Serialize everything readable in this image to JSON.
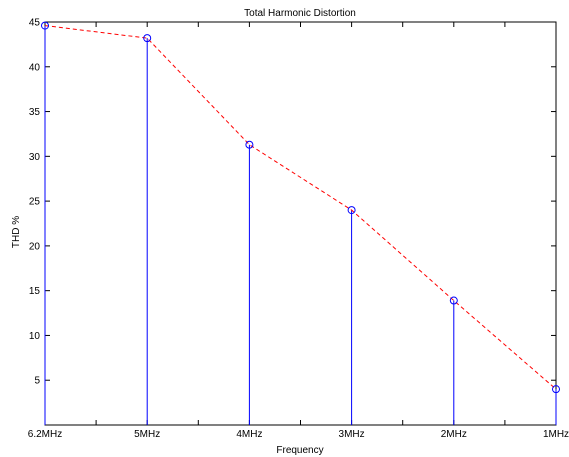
{
  "chart_data": {
    "type": "stem",
    "title": "Total Harmonic Distortion",
    "xlabel": "Frequency",
    "ylabel": "THD %",
    "x_tick_labels": [
      "6.2MHz",
      "",
      "5MHz",
      "",
      "4MHz",
      "",
      "3MHz",
      "",
      "2MHz",
      "",
      "1MHz"
    ],
    "categories": [
      "6.2MHz",
      "5MHz",
      "4MHz",
      "3MHz",
      "2MHz",
      "1MHz"
    ],
    "x": [
      0,
      1,
      2,
      3,
      4,
      5
    ],
    "values": [
      44.6,
      43.2,
      31.3,
      24.0,
      13.9,
      4.0
    ],
    "xlim": [
      0,
      5
    ],
    "ylim": [
      0,
      45
    ],
    "y_ticks": [
      5,
      10,
      15,
      20,
      25,
      30,
      35,
      40,
      45
    ],
    "stem_color": "#0000ff",
    "trend_line_color": "#ff0000",
    "trend_line_style": "dashed",
    "marker": "circle",
    "grid": false
  }
}
